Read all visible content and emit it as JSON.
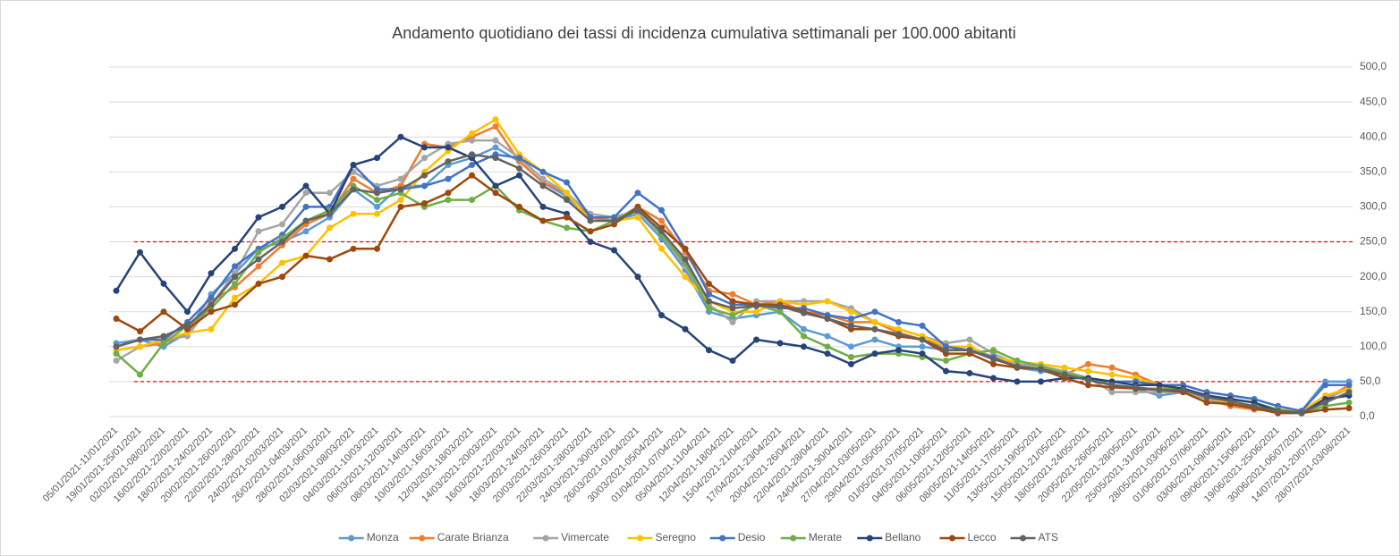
{
  "chart_data": {
    "type": "line",
    "title": "Andamento quotidiano dei tassi di incidenza cumulativa settimanali per 100.000 abitanti",
    "categories": [
      "05/01/2021-11/01/2021",
      "19/01/2021-25/01/2021",
      "02/02/2021-08/02/2021",
      "16/02/2021-22/02/2021",
      "18/02/2021-24/02/2021",
      "20/02/2021-26/02/2021",
      "22/02/2021-28/02/2021",
      "24/02/2021-02/03/2021",
      "26/02/2021-04/03/2021",
      "28/02/2021-06/03/2021",
      "02/03/2021-08/03/2021",
      "04/03/2021-10/03/2021",
      "06/03/2021-12/03/2021",
      "08/03/2021-14/03/2021",
      "10/03/2021-16/03/2021",
      "12/03/2021-18/03/2021",
      "14/03/2021-20/03/2021",
      "16/03/2021-22/03/2021",
      "18/03/2021-24/03/2021",
      "20/03/2021-26/03/2021",
      "22/03/2021-28/03/2021",
      "24/03/2021-30/03/2021",
      "26/03/2021-01/04/2021",
      "30/03/2021-05/04/2021",
      "01/04/2021-07/04/2021",
      "05/04/2021-11/04/2021",
      "12/04/2021-18/04/2021",
      "15/04/2021-21/04/2021",
      "17/04/2021-23/04/2021",
      "20/04/2021-26/04/2021",
      "22/04/2021-28/04/2021",
      "24/04/2021-30/04/2021",
      "27/04/2021-03/05/2021",
      "29/04/2021-05/05/2021",
      "01/05/2021-07/05/2021",
      "04/05/2021-10/05/2021",
      "06/05/2021-12/05/2021",
      "08/05/2021-14/05/2021",
      "11/05/2021-17/05/2021",
      "13/05/2021-19/05/2021",
      "15/05/2021-21/05/2021",
      "18/05/2021-24/05/2021",
      "20/05/2021-26/05/2021",
      "22/05/2021-28/05/2021",
      "25/05/2021-31/05/2021",
      "28/05/2021-03/06/2021",
      "01/06/2021-07/06/2021",
      "03/06/2021-09/06/2021",
      "09/06/2021-15/06/2021",
      "19/06/2021-25/06/2021",
      "30/06/2021-06/07/2021",
      "14/07/2021-20/07/2021",
      "28/07/2021-03/08/2021"
    ],
    "series": [
      {
        "name": "Monza",
        "color": "#5b9bd5",
        "values": [
          105,
          110,
          100,
          120,
          175,
          205,
          240,
          250,
          265,
          285,
          325,
          300,
          330,
          330,
          360,
          370,
          385,
          365,
          335,
          315,
          285,
          280,
          290,
          255,
          210,
          150,
          140,
          145,
          150,
          125,
          115,
          100,
          110,
          100,
          100,
          95,
          95,
          85,
          70,
          65,
          60,
          55,
          45,
          40,
          30,
          35,
          25,
          20,
          15,
          10,
          8,
          50,
          50
        ]
      },
      {
        "name": "Carate Brianza",
        "color": "#ed7d31",
        "values": [
          95,
          100,
          105,
          120,
          165,
          185,
          215,
          245,
          275,
          290,
          340,
          320,
          330,
          390,
          385,
          400,
          415,
          365,
          335,
          320,
          285,
          280,
          300,
          280,
          235,
          180,
          175,
          160,
          165,
          150,
          145,
          135,
          135,
          120,
          110,
          100,
          100,
          85,
          75,
          72,
          60,
          75,
          70,
          60,
          45,
          35,
          25,
          15,
          10,
          8,
          5,
          25,
          45
        ]
      },
      {
        "name": "Vimercate",
        "color": "#a5a5a5",
        "values": [
          80,
          100,
          110,
          115,
          160,
          205,
          265,
          275,
          320,
          320,
          350,
          330,
          340,
          370,
          390,
          395,
          395,
          370,
          340,
          320,
          290,
          285,
          295,
          260,
          215,
          160,
          135,
          165,
          165,
          165,
          165,
          155,
          135,
          125,
          115,
          105,
          110,
          90,
          75,
          72,
          65,
          55,
          35,
          35,
          35,
          35,
          25,
          20,
          15,
          10,
          8,
          25,
          40
        ]
      },
      {
        "name": "Seregno",
        "color": "#ffc000",
        "values": [
          95,
          100,
          110,
          120,
          125,
          170,
          190,
          220,
          230,
          270,
          290,
          290,
          310,
          350,
          380,
          405,
          425,
          375,
          350,
          320,
          280,
          280,
          285,
          240,
          200,
          165,
          150,
          150,
          165,
          160,
          165,
          150,
          135,
          125,
          115,
          100,
          100,
          85,
          78,
          75,
          70,
          65,
          60,
          55,
          45,
          40,
          28,
          20,
          15,
          10,
          8,
          30,
          40
        ]
      },
      {
        "name": "Desio",
        "color": "#4472c4",
        "values": [
          100,
          110,
          110,
          135,
          170,
          215,
          240,
          260,
          300,
          300,
          360,
          325,
          325,
          330,
          340,
          360,
          375,
          370,
          350,
          335,
          285,
          285,
          320,
          295,
          240,
          175,
          160,
          160,
          155,
          155,
          145,
          140,
          150,
          135,
          130,
          100,
          95,
          85,
          70,
          68,
          60,
          55,
          50,
          50,
          45,
          45,
          35,
          30,
          25,
          15,
          8,
          45,
          45
        ]
      },
      {
        "name": "Merate",
        "color": "#70ad47",
        "values": [
          90,
          60,
          105,
          130,
          155,
          190,
          235,
          255,
          280,
          295,
          330,
          310,
          320,
          300,
          310,
          310,
          330,
          295,
          280,
          270,
          265,
          280,
          300,
          260,
          220,
          155,
          145,
          160,
          150,
          115,
          100,
          85,
          90,
          90,
          85,
          80,
          90,
          95,
          80,
          72,
          62,
          55,
          45,
          40,
          40,
          40,
          30,
          25,
          20,
          10,
          5,
          15,
          20
        ]
      },
      {
        "name": "Bellano",
        "color": "#264478",
        "values": [
          180,
          235,
          190,
          150,
          205,
          240,
          285,
          300,
          330,
          290,
          360,
          370,
          400,
          385,
          385,
          370,
          330,
          345,
          300,
          290,
          250,
          238,
          200,
          145,
          125,
          95,
          80,
          110,
          105,
          100,
          90,
          75,
          90,
          95,
          90,
          65,
          62,
          55,
          50,
          50,
          55,
          55,
          50,
          45,
          45,
          40,
          30,
          25,
          20,
          8,
          5,
          25,
          30
        ]
      },
      {
        "name": "Lecco",
        "color": "#9e480e",
        "values": [
          140,
          122,
          150,
          125,
          150,
          160,
          190,
          200,
          230,
          225,
          240,
          240,
          300,
          305,
          320,
          345,
          320,
          300,
          280,
          285,
          265,
          275,
          300,
          270,
          240,
          190,
          165,
          160,
          160,
          150,
          140,
          125,
          125,
          115,
          110,
          90,
          90,
          75,
          70,
          68,
          55,
          45,
          42,
          40,
          38,
          35,
          20,
          18,
          12,
          5,
          5,
          10,
          12
        ]
      },
      {
        "name": "ATS",
        "color": "#636363",
        "values": [
          100,
          110,
          115,
          130,
          160,
          200,
          225,
          250,
          280,
          290,
          325,
          320,
          325,
          345,
          365,
          375,
          370,
          355,
          330,
          310,
          280,
          280,
          295,
          265,
          225,
          165,
          155,
          158,
          158,
          148,
          140,
          130,
          125,
          118,
          110,
          95,
          95,
          82,
          72,
          68,
          60,
          52,
          45,
          42,
          38,
          38,
          28,
          22,
          15,
          8,
          6,
          20,
          35
        ]
      }
    ],
    "ylim": [
      0,
      500
    ],
    "yticks": [
      {
        "value": 0,
        "label": "0,0"
      },
      {
        "value": 50,
        "label": "50,0"
      },
      {
        "value": 100,
        "label": "100,0"
      },
      {
        "value": 150,
        "label": "150,0"
      },
      {
        "value": 200,
        "label": "200,0"
      },
      {
        "value": 250,
        "label": "250,0"
      },
      {
        "value": 300,
        "label": "300,0"
      },
      {
        "value": 350,
        "label": "350,0"
      },
      {
        "value": 400,
        "label": "400,0"
      },
      {
        "value": 450,
        "label": "450,0"
      },
      {
        "value": 500,
        "label": "500,0"
      }
    ],
    "reference_lines": [
      {
        "value": 250,
        "color": "#ff0000"
      },
      {
        "value": 50,
        "color": "#ff0000"
      }
    ],
    "grid": true,
    "legend": "bottom"
  }
}
